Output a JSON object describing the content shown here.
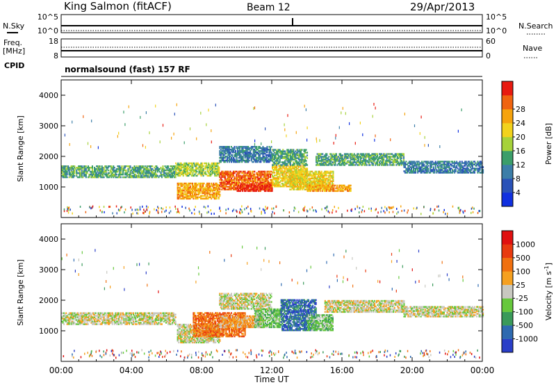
{
  "header": {
    "station": "King Salmon (fitACF)",
    "beam": "Beam 12",
    "date": "29/Apr/2013"
  },
  "params": {
    "nsky_label": "N.Sky",
    "nsearch_label": "N.Search",
    "freq_label": "Freq.",
    "freq_unit": "[MHz]",
    "nave_label": "Nave",
    "cpid_label": "CPID",
    "cpid_text": "normalsound (fast) 157 RF",
    "noise_ticks_left": [
      "10^5",
      "10^0"
    ],
    "noise_ticks_right": [
      "10^5",
      "10^0"
    ],
    "freq_ticks": [
      "18",
      "8"
    ],
    "nave_ticks": [
      "60",
      "0"
    ]
  },
  "chart_data": [
    {
      "type": "heatmap",
      "variable": "power",
      "ylabel": "Slant Range [km]",
      "ylim": [
        0,
        4500
      ],
      "yticks": [
        1000,
        2000,
        3000,
        4000
      ],
      "xlim": [
        0,
        24
      ],
      "colorbar": {
        "label": "Power [dB]",
        "ticks": [
          "4",
          "8",
          "12",
          "16",
          "20",
          "24",
          "28"
        ],
        "colors": [
          "#1030e0",
          "#2a52b8",
          "#3c7ea8",
          "#3b9e6a",
          "#a6d23a",
          "#f2d21c",
          "#f5a30d",
          "#f06410",
          "#e81a10"
        ]
      },
      "bands": [
        {
          "t0": 0.0,
          "t1": 6.5,
          "r0": 1300,
          "r1": 1700,
          "level": 3
        },
        {
          "t0": 6.5,
          "t1": 9.0,
          "r0": 1350,
          "r1": 1800,
          "level": 4
        },
        {
          "t0": 6.6,
          "t1": 9.0,
          "r0": 600,
          "r1": 1100,
          "level": 6
        },
        {
          "t0": 9.0,
          "t1": 12.0,
          "r0": 900,
          "r1": 1500,
          "level": 7
        },
        {
          "t0": 10.0,
          "t1": 12.0,
          "r0": 850,
          "r1": 1050,
          "level": 8
        },
        {
          "t0": 12.0,
          "t1": 14.0,
          "r0": 1000,
          "r1": 1700,
          "level": 5
        },
        {
          "t0": 13.0,
          "t1": 15.5,
          "r0": 900,
          "r1": 1500,
          "level": 5
        },
        {
          "t0": 14.0,
          "t1": 16.5,
          "r0": 850,
          "r1": 1050,
          "level": 6
        },
        {
          "t0": 9.0,
          "t1": 12.0,
          "r0": 1800,
          "r1": 2300,
          "level": 2
        },
        {
          "t0": 12.0,
          "t1": 14.0,
          "r0": 1700,
          "r1": 2200,
          "level": 3
        },
        {
          "t0": 14.5,
          "t1": 19.5,
          "r0": 1700,
          "r1": 2100,
          "level": 3
        },
        {
          "t0": 19.5,
          "t1": 24.0,
          "r0": 1450,
          "r1": 1850,
          "level": 2
        }
      ]
    },
    {
      "type": "heatmap",
      "variable": "velocity",
      "ylabel": "Slant Range [km]",
      "ylim": [
        0,
        4500
      ],
      "yticks": [
        1000,
        2000,
        3000,
        4000
      ],
      "xlim": [
        0,
        24
      ],
      "xticks": [
        "00:00",
        "04:00",
        "08:00",
        "12:00",
        "16:00",
        "20:00",
        "00:00"
      ],
      "xlabel": "Time UT",
      "colorbar": {
        "label": "Velocity [m s⁻¹]",
        "label_main": "Velocity [m s",
        "label_sup": "-1",
        "label_end": "]",
        "ticks": [
          "1000",
          "500",
          "100",
          "25",
          "-25",
          "-100",
          "-500",
          "-1000"
        ],
        "colors": [
          "#2a3ec8",
          "#2e6ab0",
          "#3a9a5a",
          "#66c83c",
          "#c8c8c0",
          "#f5a020",
          "#f07010",
          "#e83a10",
          "#e01010"
        ]
      },
      "bands": [
        {
          "t0": 0.0,
          "t1": 6.5,
          "r0": 1200,
          "r1": 1600,
          "level": 4
        },
        {
          "t0": 6.6,
          "t1": 9.0,
          "r0": 600,
          "r1": 1200,
          "level": 4
        },
        {
          "t0": 7.5,
          "t1": 10.5,
          "r0": 800,
          "r1": 1600,
          "level": 6
        },
        {
          "t0": 9.0,
          "t1": 11.5,
          "r0": 1100,
          "r1": 1500,
          "level": 5
        },
        {
          "t0": 11.0,
          "t1": 12.5,
          "r0": 1100,
          "r1": 1700,
          "level": 3
        },
        {
          "t0": 12.5,
          "t1": 14.5,
          "r0": 1000,
          "r1": 2000,
          "level": 1
        },
        {
          "t0": 14.0,
          "t1": 15.5,
          "r0": 1000,
          "r1": 1500,
          "level": 3
        },
        {
          "t0": 9.0,
          "t1": 12.0,
          "r0": 1700,
          "r1": 2200,
          "level": 4
        },
        {
          "t0": 15.0,
          "t1": 19.5,
          "r0": 1600,
          "r1": 2000,
          "level": 4
        },
        {
          "t0": 19.5,
          "t1": 24.0,
          "r0": 1450,
          "r1": 1800,
          "level": 4
        }
      ]
    }
  ]
}
